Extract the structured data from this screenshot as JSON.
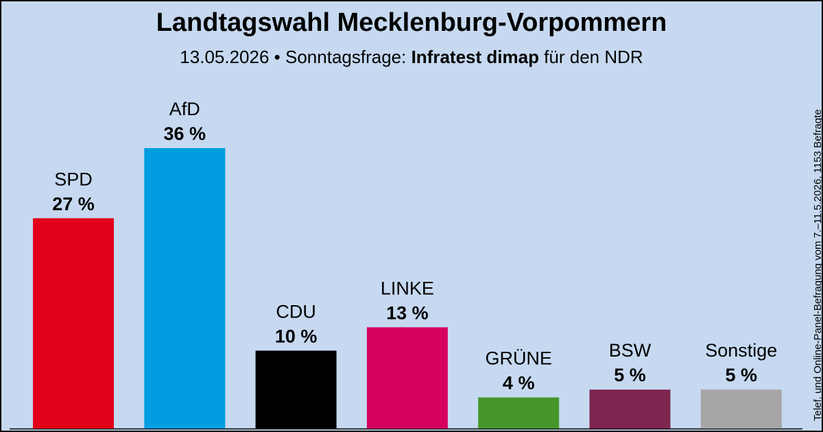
{
  "header": {
    "title": "Landtagswahl Mecklenburg-Vorpommern",
    "date": "13.05.2026",
    "separator": " • ",
    "question": "Sonntagsfrage: ",
    "institute": "Infratest dimap",
    "client": " für den NDR"
  },
  "side_note": "Telef. und Online-Panel-Befragung vom 7.–11.5.2026, 1153 Befragte",
  "chart_data": {
    "type": "bar",
    "title": "Landtagswahl Mecklenburg-Vorpommern",
    "categories": [
      "SPD",
      "AfD",
      "CDU",
      "LINKE",
      "GRÜNE",
      "BSW",
      "Sonstige"
    ],
    "values": [
      27,
      36,
      10,
      13,
      4,
      5,
      5
    ],
    "value_labels": [
      "27 %",
      "36 %",
      "10 %",
      "13 %",
      "4 %",
      "5 %",
      "5 %"
    ],
    "colors": [
      "#e2001a",
      "#009ee0",
      "#000000",
      "#d6005f",
      "#46962b",
      "#7d254f",
      "#a6a6a6"
    ],
    "ylim": [
      0,
      36
    ],
    "grid": false,
    "legend": "none"
  }
}
